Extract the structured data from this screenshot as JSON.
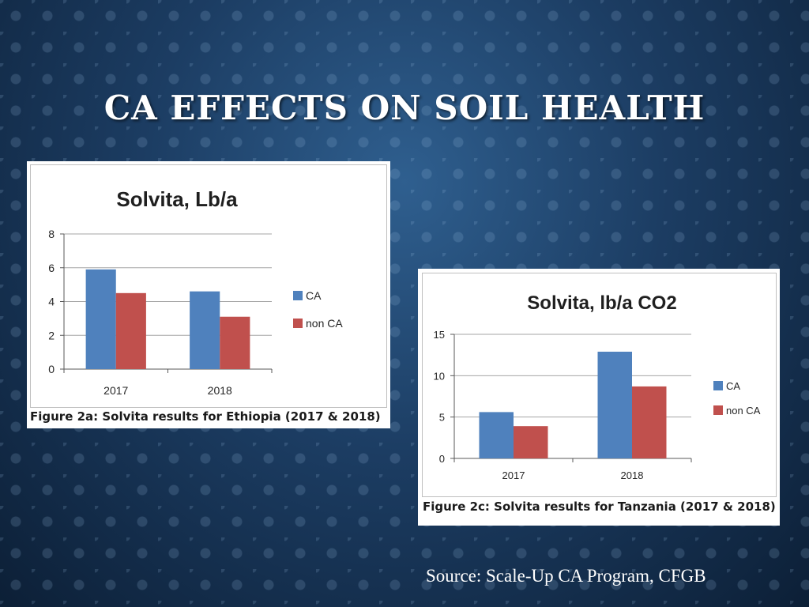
{
  "slide": {
    "title": "CA EFFECTS ON SOIL HEALTH",
    "source": "Source:  Scale-Up CA Program, CFGB"
  },
  "colors": {
    "ca": "#4f81bd",
    "non_ca": "#c0504d",
    "grid": "#a6a6a6",
    "axis": "#595959"
  },
  "chart_data": [
    {
      "type": "bar",
      "title": "Solvita, Lb/a",
      "caption": "Figure 2a: Solvita results for Ethiopia (2017 & 2018)",
      "categories": [
        "2017",
        "2018"
      ],
      "series": [
        {
          "name": "CA",
          "values": [
            5.9,
            4.6
          ]
        },
        {
          "name": "non CA",
          "values": [
            4.5,
            3.1
          ]
        }
      ],
      "ylim": [
        0,
        8
      ],
      "yticks": [
        0,
        2,
        4,
        6,
        8
      ],
      "grid": true,
      "legend": "right"
    },
    {
      "type": "bar",
      "title": "Solvita, lb/a CO2",
      "caption": "Figure 2c: Solvita results for Tanzania (2017 & 2018)",
      "categories": [
        "2017",
        "2018"
      ],
      "series": [
        {
          "name": "CA",
          "values": [
            5.6,
            12.9
          ]
        },
        {
          "name": "non CA",
          "values": [
            3.9,
            8.7
          ]
        }
      ],
      "ylim": [
        0,
        15
      ],
      "yticks": [
        0,
        5,
        10,
        15
      ],
      "grid": true,
      "legend": "right"
    }
  ]
}
